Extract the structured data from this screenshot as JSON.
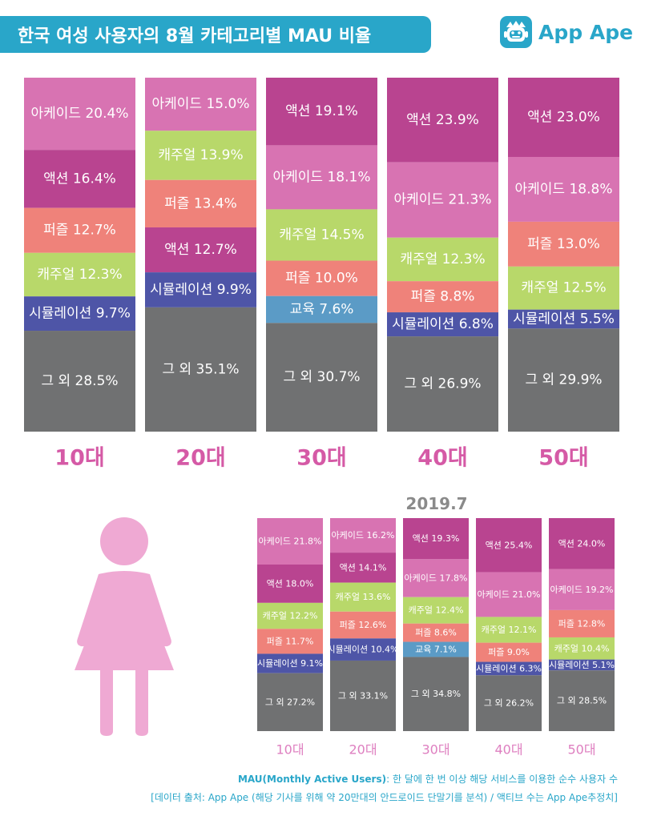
{
  "header": {
    "title": "한국 여성 사용자의 8월 카테고리별 MAU 비율",
    "brand_name": "App Ape"
  },
  "colors": {
    "arcade": "#d873b2",
    "action": "#b94490",
    "puzzle": "#ef827a",
    "casual": "#b8d86a",
    "simulation": "#4e55a7",
    "education": "#5b9bc6",
    "other": "#707172",
    "age_label": "#d55aa6",
    "small_age_label": "#de7fc0",
    "accent": "#29a6c9",
    "silhouette": "#efa9d3"
  },
  "icons": [
    "app-ape-logo-icon",
    "woman-silhouette-icon"
  ],
  "chart_data": [
    {
      "type": "bar",
      "stacked": true,
      "title": "한국 여성 사용자의 8월 카테고리별 MAU 비율",
      "categories": [
        "10대",
        "20대",
        "30대",
        "40대",
        "50대"
      ],
      "stacks": [
        [
          {
            "label": "아케이드",
            "key": "arcade",
            "value": 20.4
          },
          {
            "label": "액션",
            "key": "action",
            "value": 16.4
          },
          {
            "label": "퍼즐",
            "key": "puzzle",
            "value": 12.7
          },
          {
            "label": "캐주얼",
            "key": "casual",
            "value": 12.3
          },
          {
            "label": "시뮬레이션",
            "key": "simulation",
            "value": 9.7
          },
          {
            "label": "그 외",
            "key": "other",
            "value": 28.5
          }
        ],
        [
          {
            "label": "아케이드",
            "key": "arcade",
            "value": 15.0
          },
          {
            "label": "캐주얼",
            "key": "casual",
            "value": 13.9
          },
          {
            "label": "퍼즐",
            "key": "puzzle",
            "value": 13.4
          },
          {
            "label": "액션",
            "key": "action",
            "value": 12.7
          },
          {
            "label": "시뮬레이션",
            "key": "simulation",
            "value": 9.9
          },
          {
            "label": "그 외",
            "key": "other",
            "value": 35.1
          }
        ],
        [
          {
            "label": "액션",
            "key": "action",
            "value": 19.1
          },
          {
            "label": "아케이드",
            "key": "arcade",
            "value": 18.1
          },
          {
            "label": "캐주얼",
            "key": "casual",
            "value": 14.5
          },
          {
            "label": "퍼즐",
            "key": "puzzle",
            "value": 10.0
          },
          {
            "label": "교육",
            "key": "education",
            "value": 7.6
          },
          {
            "label": "그 외",
            "key": "other",
            "value": 30.7
          }
        ],
        [
          {
            "label": "액션",
            "key": "action",
            "value": 23.9
          },
          {
            "label": "아케이드",
            "key": "arcade",
            "value": 21.3
          },
          {
            "label": "캐주얼",
            "key": "casual",
            "value": 12.3
          },
          {
            "label": "퍼즐",
            "key": "puzzle",
            "value": 8.8
          },
          {
            "label": "시뮬레이션",
            "key": "simulation",
            "value": 6.8
          },
          {
            "label": "그 외",
            "key": "other",
            "value": 26.9
          }
        ],
        [
          {
            "label": "액션",
            "key": "action",
            "value": 23.0
          },
          {
            "label": "아케이드",
            "key": "arcade",
            "value": 18.8
          },
          {
            "label": "퍼즐",
            "key": "puzzle",
            "value": 13.0
          },
          {
            "label": "캐주얼",
            "key": "casual",
            "value": 12.5
          },
          {
            "label": "시뮬레이션",
            "key": "simulation",
            "value": 5.5
          },
          {
            "label": "그 외",
            "key": "other",
            "value": 29.9
          }
        ]
      ],
      "unit": "%"
    },
    {
      "type": "bar",
      "stacked": true,
      "title": "2019.7",
      "categories": [
        "10대",
        "20대",
        "30대",
        "40대",
        "50대"
      ],
      "stacks": [
        [
          {
            "label": "아케이드",
            "key": "arcade",
            "value": 21.8
          },
          {
            "label": "액션",
            "key": "action",
            "value": 18.0
          },
          {
            "label": "캐주얼",
            "key": "casual",
            "value": 12.2
          },
          {
            "label": "퍼즐",
            "key": "puzzle",
            "value": 11.7
          },
          {
            "label": "시뮬레이션",
            "key": "simulation",
            "value": 9.1
          },
          {
            "label": "그 외",
            "key": "other",
            "value": 27.2
          }
        ],
        [
          {
            "label": "아케이드",
            "key": "arcade",
            "value": 16.2
          },
          {
            "label": "액션",
            "key": "action",
            "value": 14.1
          },
          {
            "label": "캐주얼",
            "key": "casual",
            "value": 13.6
          },
          {
            "label": "퍼즐",
            "key": "puzzle",
            "value": 12.6
          },
          {
            "label": "시뮬레이션",
            "key": "simulation",
            "value": 10.4
          },
          {
            "label": "그 외",
            "key": "other",
            "value": 33.1
          }
        ],
        [
          {
            "label": "액션",
            "key": "action",
            "value": 19.3
          },
          {
            "label": "아케이드",
            "key": "arcade",
            "value": 17.8
          },
          {
            "label": "캐주얼",
            "key": "casual",
            "value": 12.4
          },
          {
            "label": "퍼즐",
            "key": "puzzle",
            "value": 8.6
          },
          {
            "label": "교육",
            "key": "education",
            "value": 7.1
          },
          {
            "label": "그 외",
            "key": "other",
            "value": 34.8
          }
        ],
        [
          {
            "label": "액션",
            "key": "action",
            "value": 25.4
          },
          {
            "label": "아케이드",
            "key": "arcade",
            "value": 21.0
          },
          {
            "label": "캐주얼",
            "key": "casual",
            "value": 12.1
          },
          {
            "label": "퍼즐",
            "key": "puzzle",
            "value": 9.0
          },
          {
            "label": "시뮬레이션",
            "key": "simulation",
            "value": 6.3
          },
          {
            "label": "그 외",
            "key": "other",
            "value": 26.2
          }
        ],
        [
          {
            "label": "액션",
            "key": "action",
            "value": 24.0
          },
          {
            "label": "아케이드",
            "key": "arcade",
            "value": 19.2
          },
          {
            "label": "퍼즐",
            "key": "puzzle",
            "value": 12.8
          },
          {
            "label": "캐주얼",
            "key": "casual",
            "value": 10.4
          },
          {
            "label": "시뮬레이션",
            "key": "simulation",
            "value": 5.1
          },
          {
            "label": "그 외",
            "key": "other",
            "value": 28.5
          }
        ]
      ],
      "unit": "%"
    }
  ],
  "footer": {
    "mau_term": "MAU(Monthly Active Users)",
    "mau_definition": ": 한 달에 한 번 이상 해당 서비스를 이용한 순수 사용자 수",
    "source": "[데이터 출처: App Ape (해당 기사를 위해 약 20만대의 안드로이드 단말기를 분석) / 액티브 수는 App Ape추정치]"
  }
}
